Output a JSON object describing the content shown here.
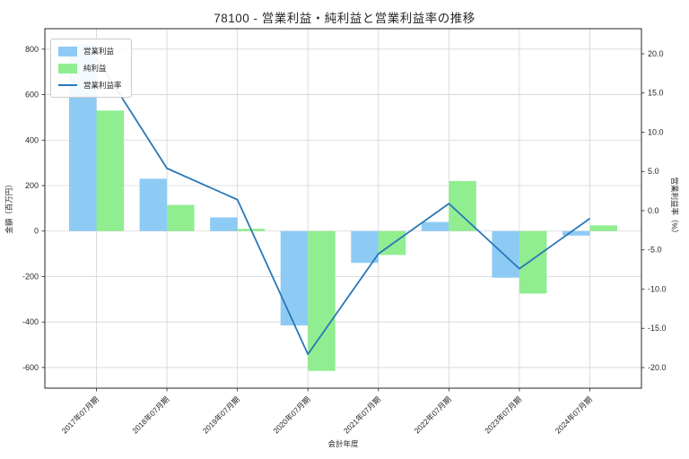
{
  "chart_data": {
    "type": "bar+line",
    "title": "78100 - 営業利益・純利益と営業利益率の推移",
    "xlabel": "会計年度",
    "ylabel_left": "金額（百万円）",
    "ylabel_right": "営業利益率（%）",
    "categories": [
      "2017年07月期",
      "2018年07月期",
      "2019年07月期",
      "2020年07月期",
      "2021年07月期",
      "2022年07月期",
      "2023年07月期",
      "2024年07月期"
    ],
    "series": [
      {
        "name": "営業利益",
        "type": "bar",
        "axis": "left",
        "color": "#8dcbf4",
        "values": [
          820,
          230,
          60,
          -415,
          -140,
          40,
          -205,
          -20
        ]
      },
      {
        "name": "純利益",
        "type": "bar",
        "axis": "left",
        "color": "#90ee90",
        "values": [
          530,
          115,
          10,
          -615,
          -105,
          220,
          -275,
          25
        ]
      },
      {
        "name": "営業利益率",
        "type": "line",
        "axis": "right",
        "color": "#2878b9",
        "values": [
          19.5,
          5.4,
          1.4,
          -18.3,
          -5.5,
          0.9,
          -7.4,
          -1.0
        ]
      }
    ],
    "left_axis": {
      "ticks": [
        800,
        600,
        400,
        200,
        0,
        -200,
        -400,
        -600
      ],
      "tick_labels": [
        "800",
        "600",
        "400",
        "200",
        "0",
        "-200",
        "-400",
        "-600"
      ],
      "range": [
        -691,
        890
      ]
    },
    "right_axis": {
      "ticks": [
        20,
        15,
        10,
        5,
        0,
        -5,
        -10,
        -15,
        -20
      ],
      "tick_labels": [
        "20.0",
        "15.0",
        "10.0",
        "5.0",
        "0.0",
        "-5.0",
        "-10.0",
        "-15.0",
        "-20.0"
      ],
      "range": [
        -22.63,
        23.2
      ]
    },
    "grid": true,
    "legend_position": "upper-left",
    "grid_color": "#d4d4d4",
    "frame_color": "#262626",
    "text_color": "#262626"
  }
}
